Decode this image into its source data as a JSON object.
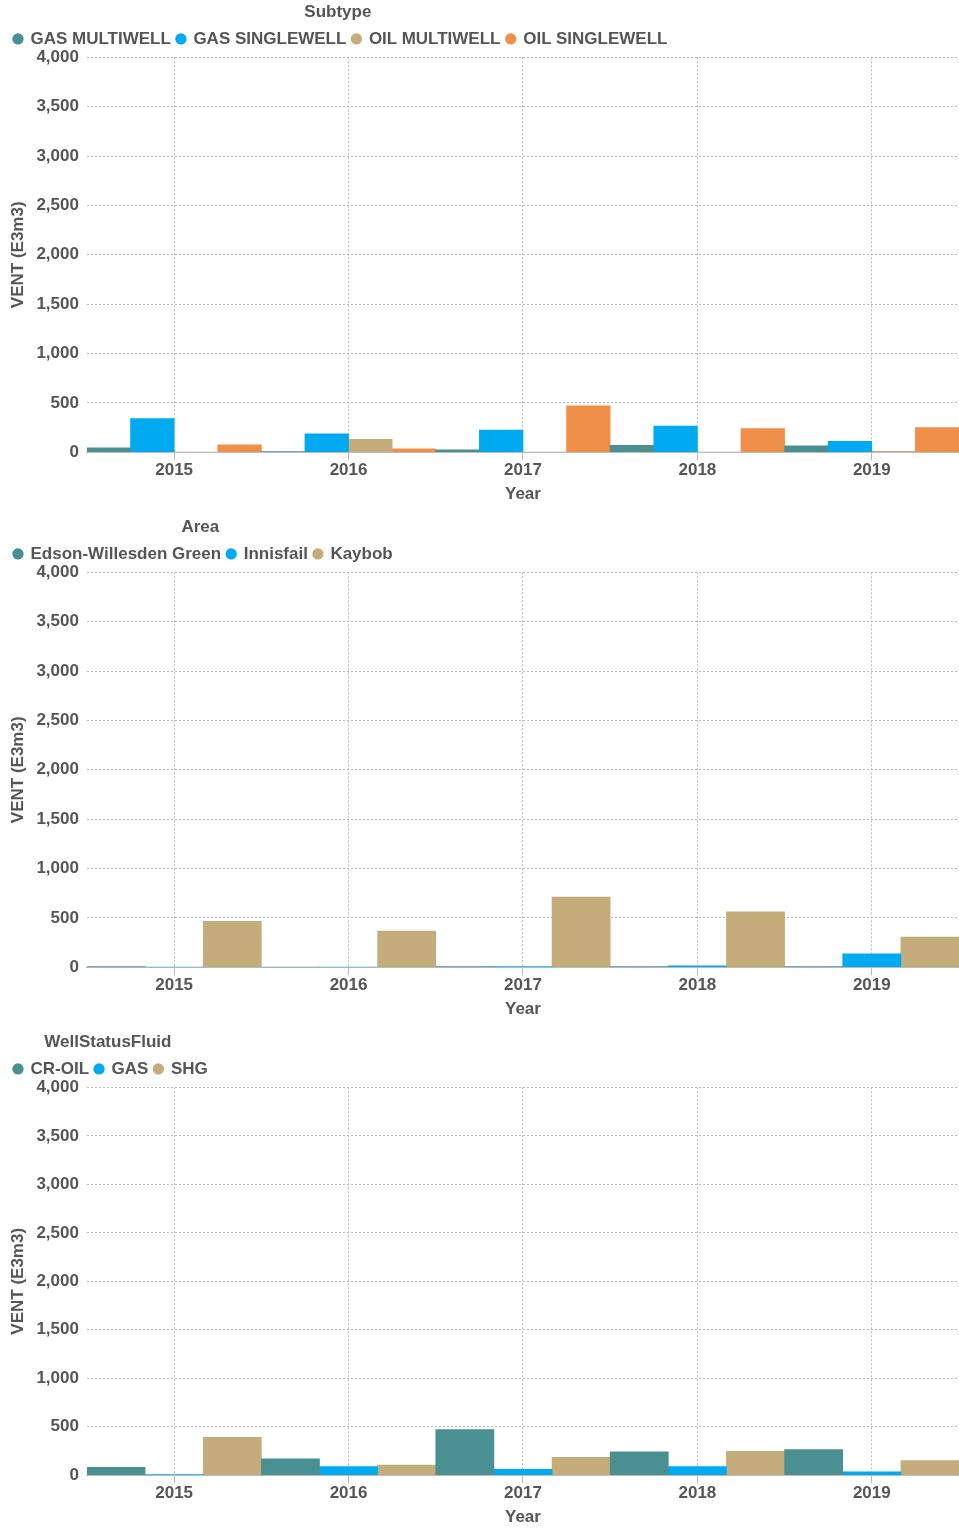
{
  "chart_data": [
    {
      "type": "bar",
      "legend_title": "Subtype",
      "xlabel": "Year",
      "ylabel": "VENT (E3m3)",
      "categories": [
        "2015",
        "2016",
        "2017",
        "2018",
        "2019"
      ],
      "ylim": [
        0,
        4000
      ],
      "yticks": [
        {
          "value": 0,
          "label": "0"
        },
        {
          "value": 500,
          "label": "500"
        },
        {
          "value": 1000,
          "label": "1,000"
        },
        {
          "value": 1500,
          "label": "1,500"
        },
        {
          "value": 2000,
          "label": "2,000"
        },
        {
          "value": 2500,
          "label": "2,500"
        },
        {
          "value": 3000,
          "label": "3,000"
        },
        {
          "value": 3500,
          "label": "3,500"
        },
        {
          "value": 4000,
          "label": "4,000"
        }
      ],
      "grid": true,
      "legend": "top left",
      "series": [
        {
          "name": "GAS MULTIWELL",
          "color": "#4a8f91",
          "values": [
            45,
            5,
            25,
            70,
            65
          ]
        },
        {
          "name": "GAS SINGLEWELL",
          "color": "#00aaf0",
          "values": [
            340,
            185,
            225,
            265,
            110
          ]
        },
        {
          "name": "OIL MULTIWELL",
          "color": "#c4ad7b",
          "values": [
            0,
            130,
            0,
            0,
            10
          ]
        },
        {
          "name": "OIL SINGLEWELL",
          "color": "#ef8f4a",
          "values": [
            75,
            35,
            470,
            240,
            250
          ]
        }
      ]
    },
    {
      "type": "bar",
      "legend_title": "Area",
      "xlabel": "Year",
      "ylabel": "VENT (E3m3)",
      "categories": [
        "2015",
        "2016",
        "2017",
        "2018",
        "2019"
      ],
      "ylim": [
        0,
        4000
      ],
      "yticks": [
        {
          "value": 0,
          "label": "0"
        },
        {
          "value": 500,
          "label": "500"
        },
        {
          "value": 1000,
          "label": "1,000"
        },
        {
          "value": 1500,
          "label": "1,500"
        },
        {
          "value": 2000,
          "label": "2,000"
        },
        {
          "value": 2500,
          "label": "2,500"
        },
        {
          "value": 3000,
          "label": "3,000"
        },
        {
          "value": 3500,
          "label": "3,500"
        },
        {
          "value": 4000,
          "label": "4,000"
        }
      ],
      "grid": true,
      "legend": "top left",
      "series": [
        {
          "name": "Edson-Willesden Green",
          "color": "#4a8f91",
          "values": [
            3,
            0,
            3,
            3,
            3
          ]
        },
        {
          "name": "Innisfail",
          "color": "#00aaf0",
          "values": [
            0,
            0,
            3,
            15,
            135
          ]
        },
        {
          "name": "Kaybob",
          "color": "#c4ad7b",
          "values": [
            465,
            365,
            710,
            560,
            305
          ]
        }
      ]
    },
    {
      "type": "bar",
      "legend_title": "WellStatusFluid",
      "xlabel": "Year",
      "ylabel": "VENT (E3m3)",
      "categories": [
        "2015",
        "2016",
        "2017",
        "2018",
        "2019"
      ],
      "ylim": [
        0,
        4000
      ],
      "yticks": [
        {
          "value": 0,
          "label": "0"
        },
        {
          "value": 500,
          "label": "500"
        },
        {
          "value": 1000,
          "label": "1,000"
        },
        {
          "value": 1500,
          "label": "1,500"
        },
        {
          "value": 2000,
          "label": "2,000"
        },
        {
          "value": 2500,
          "label": "2,500"
        },
        {
          "value": 3000,
          "label": "3,000"
        },
        {
          "value": 3500,
          "label": "3,500"
        },
        {
          "value": 4000,
          "label": "4,000"
        }
      ],
      "grid": true,
      "legend": "top left",
      "series": [
        {
          "name": "CR-OIL",
          "color": "#4a8f91",
          "values": [
            80,
            170,
            470,
            240,
            265
          ]
        },
        {
          "name": "GAS",
          "color": "#00aaf0",
          "values": [
            5,
            90,
            60,
            90,
            35
          ]
        },
        {
          "name": "SHG",
          "color": "#c4ad7b",
          "values": [
            390,
            105,
            185,
            245,
            150
          ]
        }
      ]
    }
  ]
}
